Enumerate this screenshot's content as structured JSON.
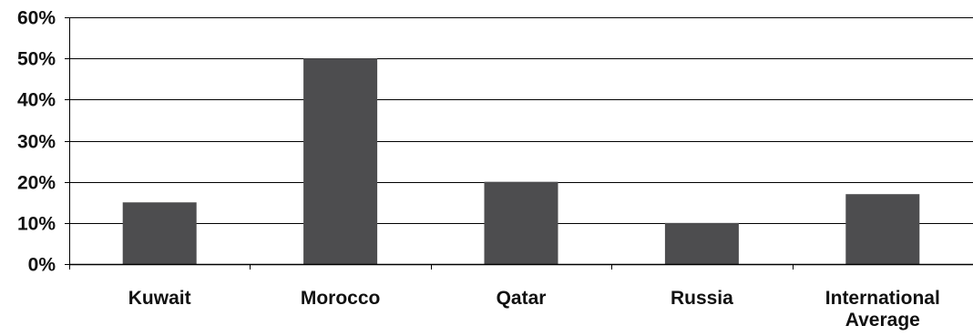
{
  "chart_data": {
    "type": "bar",
    "title": "",
    "xlabel": "",
    "ylabel": "",
    "categories": [
      [
        "Kuwait"
      ],
      [
        "Morocco"
      ],
      [
        "Qatar"
      ],
      [
        "Russia"
      ],
      [
        "International",
        "Average"
      ]
    ],
    "values": [
      0.15,
      0.5,
      0.2,
      0.1,
      0.17
    ],
    "ylim": [
      0,
      0.6
    ],
    "yticks": [
      0,
      0.1,
      0.2,
      0.3,
      0.4,
      0.5,
      0.6
    ],
    "ytick_labels": [
      "0%",
      "10%",
      "20%",
      "30%",
      "40%",
      "50%",
      "60%"
    ],
    "grid": true,
    "legend": "none",
    "colors": {
      "bar": "#4d4d4f",
      "axis": "#000000",
      "grid": "#000000",
      "text": "#111111"
    }
  }
}
